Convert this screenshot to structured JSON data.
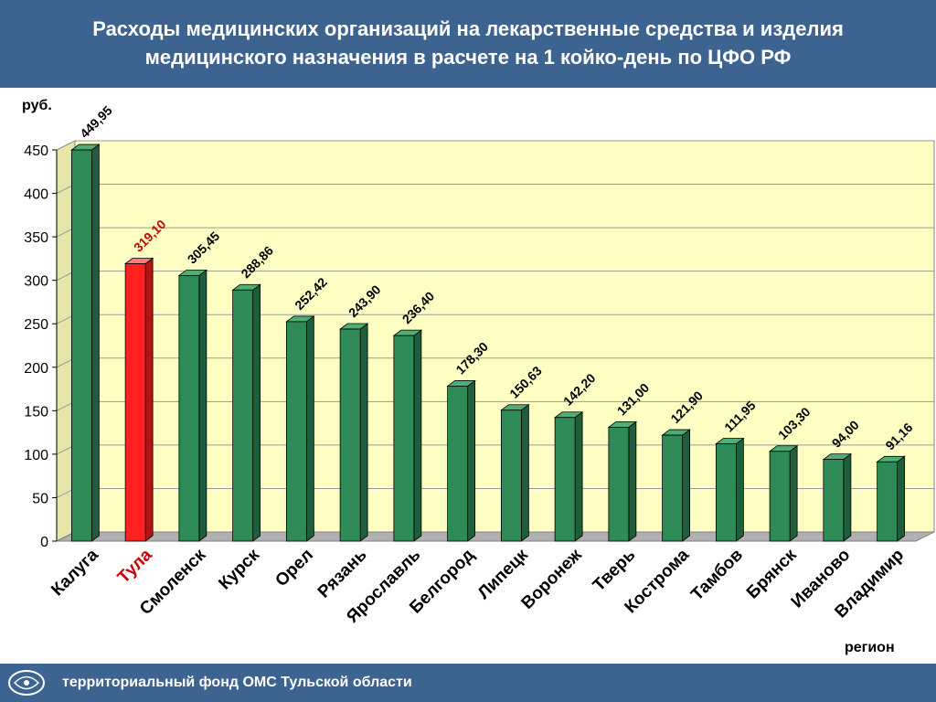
{
  "header": {
    "title_line1": "Расходы медицинских организаций на лекарственные средства и изделия",
    "title_line2": "медицинского назначения в расчете на 1 койко-день по ЦФО РФ"
  },
  "footer": {
    "text": "территориальный фонд ОМС Тульской области",
    "logo_icon": "tfoms-logo-icon"
  },
  "colors": {
    "header_bg": "#3d6390",
    "plot_bg": "#ffffc4",
    "bar": "#2e8b57",
    "bar_highlight": "#ff2020",
    "highlight_text": "#cc0000"
  },
  "chart_data": {
    "type": "bar",
    "ylabel": "руб.",
    "xlabel": "регион",
    "ylim": [
      0,
      450
    ],
    "yticks": [
      0,
      50,
      100,
      150,
      200,
      250,
      300,
      350,
      400,
      450
    ],
    "grid": "horizontal",
    "categories": [
      "Калуга",
      "Тула",
      "Смоленск",
      "Курск",
      "Орел",
      "Рязань",
      "Ярославль",
      "Белгород",
      "Липецк",
      "Воронеж",
      "Тверь",
      "Кострома",
      "Тамбов",
      "Брянск",
      "Иваново",
      "Владимир"
    ],
    "values": [
      449.95,
      319.1,
      305.45,
      288.86,
      252.42,
      243.9,
      236.4,
      178.3,
      150.63,
      142.2,
      131.0,
      121.9,
      111.95,
      103.3,
      94.0,
      91.16
    ],
    "value_labels": [
      "449,95",
      "319,10",
      "305,45",
      "288,86",
      "252,42",
      "243,90",
      "236,40",
      "178,30",
      "150,63",
      "142,20",
      "131,00",
      "121,90",
      "111,95",
      "103,30",
      "94,00",
      "91,16"
    ],
    "highlight": "Тула"
  }
}
